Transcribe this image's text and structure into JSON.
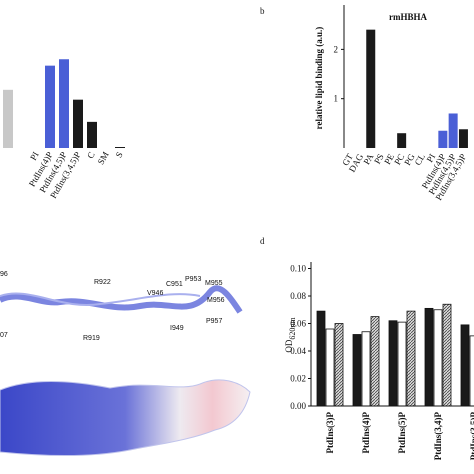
{
  "chart_data": [
    {
      "type": "bar",
      "categories": [
        null,
        null,
        "PI",
        "PtdIns(4)P",
        "PtdIns(4,5)P",
        "PtdIns(3,4,5)P",
        "C",
        "SM",
        "S"
      ],
      "values": [
        1.18,
        0,
        0,
        1.67,
        1.8,
        0.98,
        0.53,
        0,
        0.02
      ],
      "colors": [
        "#c8c8c8",
        "#c8c8c8",
        "#c8c8c8",
        "#4a5fd6",
        "#4a5fd6",
        "#1a1a1a",
        "#1a1a1a",
        "#1a1a1a",
        "#1a1a1a"
      ]
    },
    {
      "type": "bar",
      "panel": "b",
      "title": "rmHBHA",
      "ylabel": "relative lipid binding (a.u.)",
      "categories": [
        "GT",
        "DAG",
        "PA",
        "PS",
        "PE",
        "PC",
        "PG",
        "CL",
        "PI",
        "PtdIns(4)P",
        "PtdIns(4,5)P",
        "PtdIns(3,4,5)P"
      ],
      "values": [
        0,
        0,
        2.4,
        0,
        0,
        0.3,
        0,
        0,
        0,
        0.35,
        0.7,
        0.38
      ],
      "colors": [
        "#1a1a1a",
        "#1a1a1a",
        "#1a1a1a",
        "#1a1a1a",
        "#1a1a1a",
        "#1a1a1a",
        "#1a1a1a",
        "#1a1a1a",
        "#1a1a1a",
        "#4a5fd6",
        "#4a5fd6",
        "#1a1a1a"
      ],
      "ylim": [
        0,
        2.9
      ],
      "yticks": [
        1,
        2
      ]
    },
    {
      "type": "groupedbar",
      "panel": "d",
      "ylabel": "OD",
      "ylabel_subscript": "620nm",
      "categories": [
        "PtdIns(3)P",
        "PtdIns(4)P",
        "PtdIns(5)P",
        "PtdIns(3,4)P",
        "PtdIns(3,5)P"
      ],
      "series": [
        {
          "color": "#1a1a1a",
          "values": [
            0.069,
            0.052,
            0.062,
            0.071,
            0.059
          ]
        },
        {
          "color": "#ffffff",
          "values": [
            0.056,
            0.054,
            0.061,
            0.07,
            0.051
          ]
        },
        {
          "color": "hatch",
          "values": [
            0.06,
            0.065,
            0.069,
            0.074,
            null
          ]
        }
      ],
      "ylim": [
        0,
        0.104
      ],
      "yticks": [
        {
          "value": 0,
          "label": "0.00"
        },
        {
          "value": 0.02,
          "label": "0.02"
        },
        {
          "value": 0.04,
          "label": "0.04"
        },
        {
          "value": 0.06,
          "label": "0.06"
        },
        {
          "value": 0.08,
          "label": "0.08"
        },
        {
          "value": 0.1,
          "label": "0.10"
        }
      ]
    }
  ],
  "structure": {
    "labels": [
      "96",
      "R922",
      "07",
      "R919",
      "V946",
      "C951",
      "P953",
      "M955",
      "I949",
      "M956",
      "P957"
    ]
  }
}
